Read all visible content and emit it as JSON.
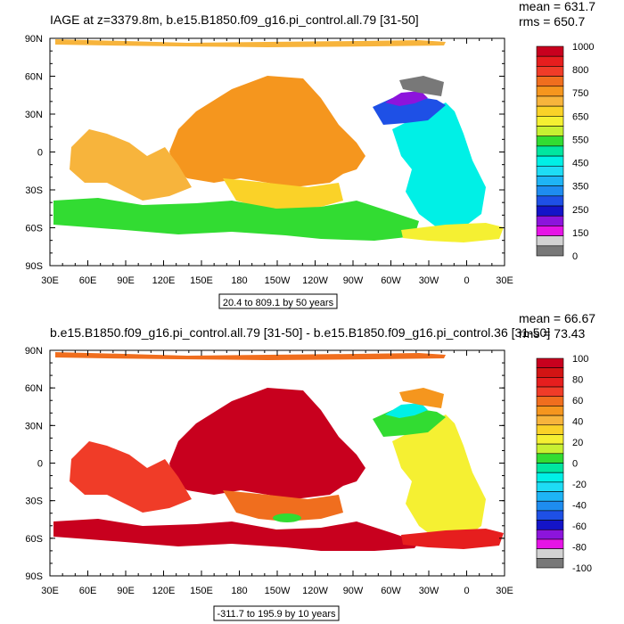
{
  "panels": [
    {
      "title": "IAGE at z=3379.8m, b.e15.B1850.f09_g16.pi_control.all.79 [31-50]",
      "stats": {
        "mean": "mean = 631.7",
        "rms": "rms = 650.7"
      },
      "contour_info": "20.4 to 809.1 by 50 years",
      "colorbar": {
        "labels": [
          "1000",
          "800",
          "750",
          "650",
          "550",
          "450",
          "350",
          "250",
          "150",
          "0"
        ],
        "colors": [
          "#c8001e",
          "#e61e1e",
          "#f03c28",
          "#f06e1e",
          "#f5961e",
          "#f7b43c",
          "#fad228",
          "#f5f032",
          "#c8f032",
          "#32dc32",
          "#00e6a0",
          "#00f0e6",
          "#1edcf5",
          "#1eb4f5",
          "#1e8cf0",
          "#1e50e6",
          "#1414c8",
          "#8c14dc",
          "#e614e6",
          "#d2d2d2",
          "#787878"
        ]
      },
      "regions": {
        "pacific": "#f5961e",
        "pacific_south": "#fad228",
        "indian": "#f7b43c",
        "atlantic": "#00f0e6",
        "atlantic_north": "#1e50e6",
        "nordic": "#8c14dc",
        "arctic_grey": "#787878",
        "southern": "#32dc32",
        "southern_atl": "#f5f032",
        "arctic_strip": "#f7b43c"
      }
    },
    {
      "title": "b.e15.B1850.f09_g16.pi_control.all.79 [31-50] - b.e15.B1850.f09_g16.pi_control.36 [31-50]",
      "stats": {
        "mean": "mean = 66.67",
        "rms": "rms = 73.43"
      },
      "contour_info": "-311.7 to 195.9 by 10 years",
      "colorbar": {
        "labels": [
          "100",
          "80",
          "60",
          "40",
          "20",
          "0",
          "-20",
          "-40",
          "-60",
          "-80",
          "-100"
        ],
        "colors": [
          "#c8001e",
          "#d21414",
          "#e61e1e",
          "#f03c28",
          "#f06e1e",
          "#f5961e",
          "#f7b43c",
          "#fad228",
          "#f5f032",
          "#c8f032",
          "#32dc32",
          "#00e6a0",
          "#00f0e6",
          "#1edcf5",
          "#1eb4f5",
          "#1e8cf0",
          "#1e50e6",
          "#1414c8",
          "#8c14dc",
          "#e614e6",
          "#d2d2d2",
          "#787878"
        ]
      },
      "regions": {
        "pacific": "#c8001e",
        "pacific_south": "#f06e1e",
        "indian": "#f03c28",
        "atlantic": "#f5f032",
        "atlantic_north": "#32dc32",
        "nordic": "#00f0e6",
        "arctic_grey": "#f5961e",
        "southern": "#c8001e",
        "southern_atl": "#e61e1e",
        "arctic_strip": "#f06e1e"
      }
    }
  ],
  "axes": {
    "lat_labels": [
      "90N",
      "60N",
      "30N",
      "0",
      "30S",
      "60S",
      "90S"
    ],
    "lon_labels": [
      "30E",
      "60E",
      "90E",
      "120E",
      "150E",
      "180",
      "150W",
      "120W",
      "90W",
      "60W",
      "30W",
      "0",
      "30E"
    ]
  }
}
